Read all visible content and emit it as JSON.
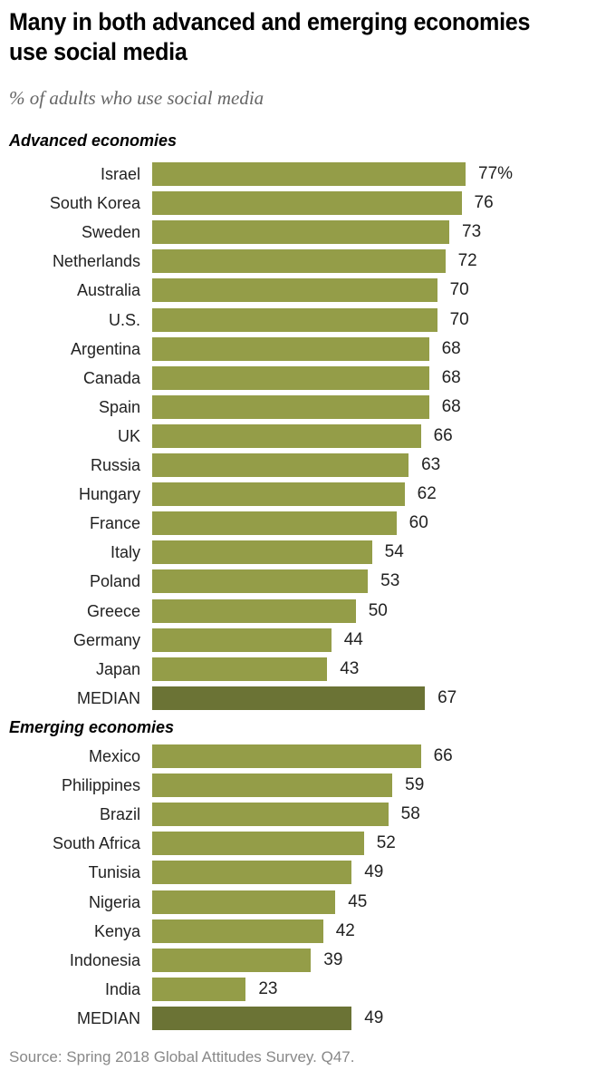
{
  "chart_data": {
    "type": "bar",
    "orientation": "horizontal",
    "title": "Many in both advanced and emerging economies use social media",
    "subtitle": "% of adults who use social media",
    "value_suffix_first": "%",
    "xlim": [
      0,
      100
    ],
    "grid": false,
    "groups": [
      {
        "name": "Advanced economies",
        "categories": [
          "Israel",
          "South Korea",
          "Sweden",
          "Netherlands",
          "Australia",
          "U.S.",
          "Argentina",
          "Canada",
          "Spain",
          "UK",
          "Russia",
          "Hungary",
          "France",
          "Italy",
          "Poland",
          "Greece",
          "Germany",
          "Japan",
          "MEDIAN"
        ],
        "values": [
          77,
          76,
          73,
          72,
          70,
          70,
          68,
          68,
          68,
          66,
          63,
          62,
          60,
          54,
          53,
          50,
          44,
          43,
          67
        ]
      },
      {
        "name": "Emerging economies",
        "categories": [
          "Mexico",
          "Philippines",
          "Brazil",
          "South Africa",
          "Tunisia",
          "Nigeria",
          "Kenya",
          "Indonesia",
          "India",
          "MEDIAN"
        ],
        "values": [
          66,
          59,
          58,
          52,
          49,
          45,
          42,
          39,
          23,
          49
        ]
      }
    ],
    "colors": {
      "bar": "#949d48",
      "median": "#6b7335"
    },
    "source": "Source: Spring 2018 Global Attitudes Survey. Q47."
  }
}
